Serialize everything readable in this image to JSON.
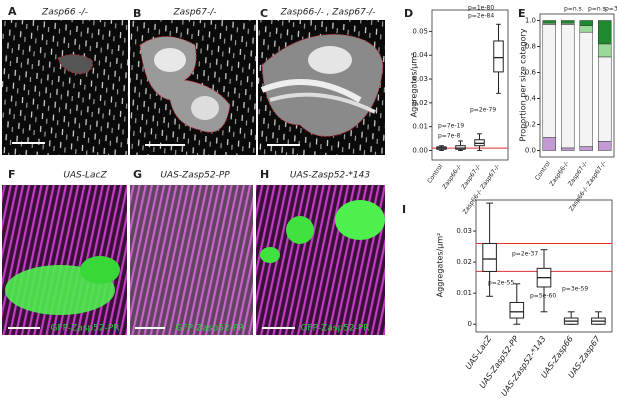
{
  "panels": [
    {
      "letter": "A",
      "title": "Zasp66 -/-"
    },
    {
      "letter": "B",
      "title": "Zasp67-/-"
    },
    {
      "letter": "C",
      "title": "Zasp66-/- , Zasp67-/-"
    },
    {
      "letter": "F",
      "title": "UAS-LacZ",
      "caption": "GFP-Zasp52-PR"
    },
    {
      "letter": "G",
      "title": "UAS-Zasp52-PP",
      "caption": "GFP-Zasp52-PR"
    },
    {
      "letter": "H",
      "title": "UAS-Zasp52-*143",
      "caption": "GFP-Zasp52-PR"
    }
  ],
  "chart_data": [
    {
      "letter": "D",
      "type": "box",
      "ylabel": "Aggregates/μm²",
      "categories": [
        "Control",
        "Zasp66-/-",
        "Zasp67-/-",
        "Zasp66-/- Zasp67-/-"
      ],
      "boxes": [
        {
          "whislo": 0,
          "q1": 0.0005,
          "med": 0.001,
          "q3": 0.0015,
          "whishi": 0.002
        },
        {
          "whislo": 0,
          "q1": 0.0005,
          "med": 0.001,
          "q3": 0.002,
          "whishi": 0.004
        },
        {
          "whislo": 0,
          "q1": 0.002,
          "med": 0.003,
          "q3": 0.0045,
          "whishi": 0.007
        },
        {
          "whislo": 0.024,
          "q1": 0.033,
          "med": 0.039,
          "q3": 0.046,
          "whishi": 0.053
        }
      ],
      "color": "#ffffff",
      "ylim": [
        -0.004,
        0.059
      ],
      "yticks": [
        {
          "value": 0,
          "label": "0.00"
        },
        0.01,
        0.02,
        0.03,
        0.04,
        0.05
      ],
      "reference_lines": [
        0.001
      ],
      "reference_color": "#e03030",
      "annotations": [
        "p=7e-8",
        "p=7e-19",
        "p=2e-79",
        "p=1e-80",
        "p=2e-84"
      ]
    },
    {
      "letter": "E",
      "type": "stacked_bar",
      "ylabel": "Proportion per size category",
      "categories": [
        "Control",
        "Zasp66-/-",
        "Zasp67-/-",
        "Zasp66-/- Zasp67-/-"
      ],
      "series": [
        {
          "color": "#c39bd3",
          "values": [
            0.1,
            0.02,
            0.03,
            0.07
          ]
        },
        {
          "color": "#f4f4f4",
          "values": [
            0.87,
            0.95,
            0.88,
            0.65
          ]
        },
        {
          "color": "#9bd89b",
          "values": [
            0.01,
            0.01,
            0.05,
            0.1
          ]
        },
        {
          "color": "#1e8a2e",
          "values": [
            0.02,
            0.02,
            0.04,
            0.18
          ]
        }
      ],
      "ylim": [
        -0.05,
        1.05
      ],
      "yticks": [
        {
          "value": 0,
          "label": "0.0"
        },
        0.2,
        0.4,
        0.6,
        0.8,
        {
          "value": 1,
          "label": "1.0"
        }
      ],
      "annotations": [
        "p=n.s.",
        "p=n.s.",
        "p=3e-8"
      ]
    },
    {
      "letter": "I",
      "type": "box",
      "ylabel": "Aggregates/μm²",
      "categories": [
        "UAS-LacZ",
        "UAS-Zasp52-PP",
        "UAS-Zasp52-*143",
        "UAS-Zasp66",
        "UAS-Zasp67"
      ],
      "boxes": [
        {
          "whislo": 0.009,
          "q1": 0.017,
          "med": 0.021,
          "q3": 0.026,
          "whishi": 0.039
        },
        {
          "whislo": 0,
          "q1": 0.002,
          "med": 0.004,
          "q3": 0.007,
          "whishi": 0.013
        },
        {
          "whislo": 0.004,
          "q1": 0.012,
          "med": 0.015,
          "q3": 0.018,
          "whishi": 0.024
        },
        {
          "whislo": 0,
          "q1": 0,
          "med": 0.001,
          "q3": 0.002,
          "whishi": 0.004
        },
        {
          "whislo": 0,
          "q1": 0,
          "med": 0.001,
          "q3": 0.002,
          "whishi": 0.004
        }
      ],
      "color": "#ffffff",
      "ylim": [
        -0.0025,
        0.04
      ],
      "yticks": [
        0,
        0.01,
        0.02,
        0.03
      ],
      "reference_lines": [
        0.017,
        0.026
      ],
      "reference_color": "#e03030",
      "annotations": [
        "p=2e-37",
        "p=2e-55",
        "p=5e-60",
        "p=3e-59"
      ]
    }
  ]
}
